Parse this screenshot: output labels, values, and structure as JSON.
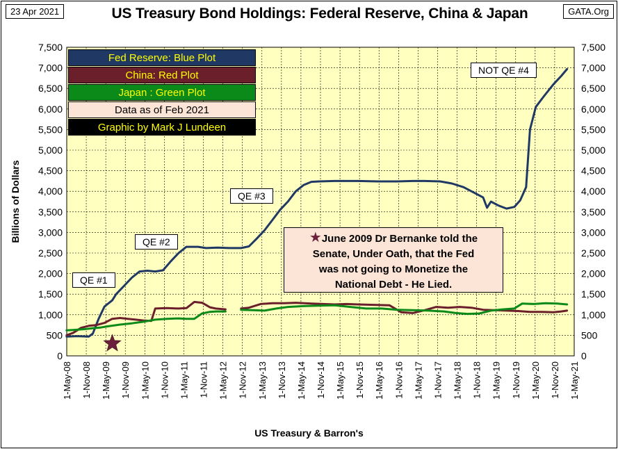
{
  "header": {
    "date": "23 Apr 2021",
    "title": "US Treasury Bond Holdings: Federal Reserve, China & Japan",
    "source": "GATA.Org"
  },
  "legend": [
    {
      "label": "Fed Reserve: Blue Plot",
      "bg": "#1f3864",
      "fg": "#ffff00"
    },
    {
      "label": "China: Red Plot",
      "bg": "#6b1f2a",
      "fg": "#ffff00"
    },
    {
      "label": "Japan : Green Plot",
      "bg": "#0b8a1a",
      "fg": "#ffff00"
    },
    {
      "label": "Data as of Feb 2021",
      "bg": "#fce4d6",
      "fg": "#000000"
    },
    {
      "label": "Graphic by Mark J Lundeen",
      "bg": "#000000",
      "fg": "#ffff00"
    }
  ],
  "annotations": {
    "qe1": "QE #1",
    "qe2": "QE #2",
    "qe3": "QE #3",
    "qe4": "NOT QE #4",
    "bernanke_line1": "June 2009 Dr Bernanke told the",
    "bernanke_line2": "Senate, Under Oath, that the Fed",
    "bernanke_line3": "was not going to Monetize the",
    "bernanke_line4": "National Debt - He Lied."
  },
  "colors": {
    "plot_bg": "#ffffc0",
    "fed": "#1f3864",
    "china": "#6b1f2a",
    "japan": "#0b8a1a",
    "star": "#6b1f3a"
  },
  "chart_data": {
    "type": "line",
    "title": "US Treasury Bond Holdings: Federal Reserve, China & Japan",
    "xlabel": "US Treasury & Barron's",
    "ylabel": "Billions of Dollars",
    "ylim": [
      0,
      7500
    ],
    "xlim": [
      2008.333,
      2021.333
    ],
    "grid": true,
    "y_ticks": [
      "0",
      "500",
      "1,000",
      "1,500",
      "2,000",
      "2,500",
      "3,000",
      "3,500",
      "4,000",
      "4,500",
      "5,000",
      "5,500",
      "6,000",
      "6,500",
      "7,000",
      "7,500"
    ],
    "x_ticks": [
      "1-May-08",
      "1-Nov-08",
      "1-May-09",
      "1-Nov-09",
      "1-May-10",
      "1-Nov-10",
      "1-May-11",
      "1-Nov-11",
      "1-May-12",
      "1-Nov-12",
      "1-May-13",
      "1-Nov-13",
      "1-May-14",
      "1-Nov-14",
      "1-May-15",
      "1-Nov-15",
      "1-May-16",
      "1-Nov-16",
      "1-May-17",
      "1-Nov-17",
      "1-May-18",
      "1-Nov-18",
      "1-May-19",
      "1-Nov-19",
      "1-May-20",
      "1-Nov-20",
      "1-May-21"
    ],
    "star_point": {
      "x": 2009.5,
      "y": 300
    },
    "series": [
      {
        "name": "Fed Reserve",
        "color": "#1f3864",
        "points": [
          [
            2008.33,
            470
          ],
          [
            2008.6,
            480
          ],
          [
            2008.9,
            470
          ],
          [
            2009.0,
            540
          ],
          [
            2009.15,
            900
          ],
          [
            2009.3,
            1200
          ],
          [
            2009.5,
            1350
          ],
          [
            2009.6,
            1500
          ],
          [
            2009.8,
            1700
          ],
          [
            2010.0,
            1900
          ],
          [
            2010.2,
            2050
          ],
          [
            2010.4,
            2070
          ],
          [
            2010.6,
            2050
          ],
          [
            2010.8,
            2080
          ],
          [
            2011.0,
            2300
          ],
          [
            2011.2,
            2500
          ],
          [
            2011.4,
            2650
          ],
          [
            2011.7,
            2650
          ],
          [
            2011.9,
            2620
          ],
          [
            2012.2,
            2630
          ],
          [
            2012.5,
            2620
          ],
          [
            2012.8,
            2620
          ],
          [
            2013.0,
            2660
          ],
          [
            2013.2,
            2850
          ],
          [
            2013.4,
            3050
          ],
          [
            2013.6,
            3300
          ],
          [
            2013.8,
            3550
          ],
          [
            2014.0,
            3750
          ],
          [
            2014.2,
            4000
          ],
          [
            2014.4,
            4150
          ],
          [
            2014.6,
            4230
          ],
          [
            2014.8,
            4240
          ],
          [
            2015.2,
            4250
          ],
          [
            2015.8,
            4250
          ],
          [
            2016.3,
            4240
          ],
          [
            2016.8,
            4240
          ],
          [
            2017.2,
            4250
          ],
          [
            2017.5,
            4250
          ],
          [
            2017.9,
            4240
          ],
          [
            2018.2,
            4190
          ],
          [
            2018.5,
            4100
          ],
          [
            2018.8,
            3950
          ],
          [
            2019.0,
            3850
          ],
          [
            2019.1,
            3600
          ],
          [
            2019.2,
            3750
          ],
          [
            2019.4,
            3650
          ],
          [
            2019.6,
            3580
          ],
          [
            2019.8,
            3620
          ],
          [
            2019.95,
            3780
          ],
          [
            2020.1,
            4100
          ],
          [
            2020.2,
            5500
          ],
          [
            2020.35,
            6050
          ],
          [
            2020.55,
            6300
          ],
          [
            2020.8,
            6600
          ],
          [
            2021.0,
            6800
          ],
          [
            2021.15,
            6970
          ]
        ]
      },
      {
        "name": "China",
        "color": "#6b1f2a",
        "points": [
          [
            2008.33,
            500
          ],
          [
            2008.5,
            560
          ],
          [
            2008.7,
            680
          ],
          [
            2008.9,
            730
          ],
          [
            2009.1,
            750
          ],
          [
            2009.3,
            800
          ],
          [
            2009.5,
            900
          ],
          [
            2009.7,
            920
          ],
          [
            2009.9,
            900
          ],
          [
            2010.1,
            880
          ],
          [
            2010.3,
            860
          ],
          [
            2010.5,
            850
          ],
          [
            2010.6,
            1150
          ],
          [
            2010.9,
            1160
          ],
          [
            2011.2,
            1150
          ],
          [
            2011.4,
            1160
          ],
          [
            2011.6,
            1310
          ],
          [
            2011.8,
            1290
          ],
          [
            2012.0,
            1180
          ],
          [
            2012.15,
            1150
          ],
          [
            2012.4,
            1130
          ],
          [
            null,
            null
          ],
          [
            2012.8,
            1150
          ],
          [
            2013.0,
            1170
          ],
          [
            2013.3,
            1260
          ],
          [
            2013.6,
            1280
          ],
          [
            2013.9,
            1280
          ],
          [
            2014.2,
            1290
          ],
          [
            2014.6,
            1270
          ],
          [
            2014.9,
            1260
          ],
          [
            2015.2,
            1250
          ],
          [
            2015.5,
            1260
          ],
          [
            2015.8,
            1250
          ],
          [
            2016.2,
            1240
          ],
          [
            2016.6,
            1230
          ],
          [
            2016.9,
            1060
          ],
          [
            2017.2,
            1040
          ],
          [
            2017.5,
            1110
          ],
          [
            2017.8,
            1190
          ],
          [
            2018.1,
            1170
          ],
          [
            2018.4,
            1190
          ],
          [
            2018.7,
            1170
          ],
          [
            2019.0,
            1120
          ],
          [
            2019.3,
            1110
          ],
          [
            2019.6,
            1100
          ],
          [
            2019.9,
            1090
          ],
          [
            2020.2,
            1070
          ],
          [
            2020.5,
            1070
          ],
          [
            2020.8,
            1060
          ],
          [
            2021.0,
            1080
          ],
          [
            2021.15,
            1100
          ]
        ]
      },
      {
        "name": "Japan",
        "color": "#0b8a1a",
        "points": [
          [
            2008.33,
            620
          ],
          [
            2008.5,
            630
          ],
          [
            2008.8,
            650
          ],
          [
            2009.0,
            670
          ],
          [
            2009.2,
            690
          ],
          [
            2009.4,
            720
          ],
          [
            2009.7,
            760
          ],
          [
            2010.0,
            790
          ],
          [
            2010.3,
            830
          ],
          [
            2010.6,
            880
          ],
          [
            2010.9,
            900
          ],
          [
            2011.2,
            910
          ],
          [
            2011.4,
            900
          ],
          [
            2011.6,
            900
          ],
          [
            2011.8,
            1030
          ],
          [
            2012.0,
            1070
          ],
          [
            2012.15,
            1080
          ],
          [
            2012.4,
            1080
          ],
          [
            null,
            null
          ],
          [
            2012.8,
            1120
          ],
          [
            2013.1,
            1110
          ],
          [
            2013.4,
            1100
          ],
          [
            2013.7,
            1150
          ],
          [
            2014.0,
            1190
          ],
          [
            2014.4,
            1210
          ],
          [
            2014.8,
            1220
          ],
          [
            2015.2,
            1230
          ],
          [
            2015.6,
            1190
          ],
          [
            2016.0,
            1150
          ],
          [
            2016.4,
            1150
          ],
          [
            2016.8,
            1120
          ],
          [
            2017.2,
            1110
          ],
          [
            2017.6,
            1100
          ],
          [
            2018.0,
            1080
          ],
          [
            2018.3,
            1040
          ],
          [
            2018.6,
            1020
          ],
          [
            2018.9,
            1030
          ],
          [
            2019.2,
            1100
          ],
          [
            2019.5,
            1130
          ],
          [
            2019.8,
            1150
          ],
          [
            2020.0,
            1270
          ],
          [
            2020.3,
            1260
          ],
          [
            2020.6,
            1280
          ],
          [
            2020.9,
            1270
          ],
          [
            2021.15,
            1250
          ]
        ]
      }
    ]
  }
}
